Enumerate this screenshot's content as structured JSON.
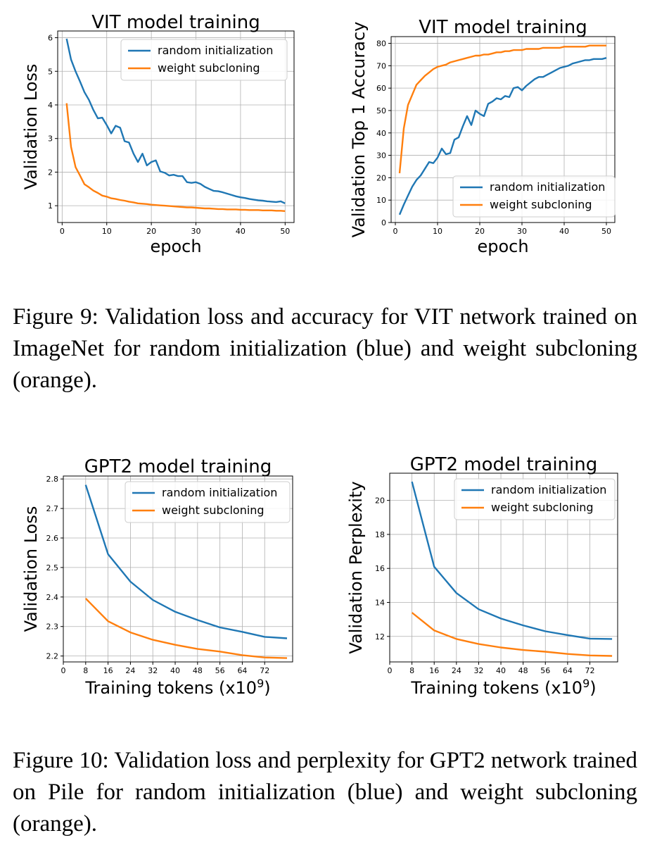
{
  "charts": [
    {
      "id": "vit-loss",
      "chart_data": {
        "type": "line",
        "title": "VIT model training",
        "xlabel": "epoch",
        "ylabel": "Validation Loss",
        "xlim": [
          -1,
          52
        ],
        "ylim": [
          0.5,
          6.2
        ],
        "xticks": [
          0,
          10,
          20,
          30,
          40,
          50
        ],
        "yticks": [
          1,
          2,
          3,
          4,
          5,
          6
        ],
        "grid": true,
        "legend": "upper-right",
        "series": [
          {
            "name": "random initialization",
            "color": "#1f77b4",
            "x": [
              1,
              2,
              3,
              4,
              5,
              6,
              7,
              8,
              9,
              10,
              11,
              12,
              13,
              14,
              15,
              16,
              17,
              18,
              19,
              20,
              21,
              22,
              23,
              24,
              25,
              26,
              27,
              28,
              29,
              30,
              31,
              32,
              33,
              34,
              35,
              36,
              37,
              38,
              39,
              40,
              41,
              42,
              43,
              44,
              45,
              46,
              47,
              48,
              49,
              50
            ],
            "y": [
              5.97,
              5.35,
              5.0,
              4.7,
              4.38,
              4.15,
              3.85,
              3.6,
              3.62,
              3.4,
              3.15,
              3.38,
              3.32,
              2.92,
              2.88,
              2.55,
              2.3,
              2.55,
              2.2,
              2.3,
              2.35,
              2.02,
              1.98,
              1.9,
              1.92,
              1.88,
              1.88,
              1.7,
              1.68,
              1.7,
              1.65,
              1.56,
              1.5,
              1.44,
              1.43,
              1.4,
              1.36,
              1.32,
              1.28,
              1.25,
              1.23,
              1.2,
              1.18,
              1.16,
              1.15,
              1.13,
              1.12,
              1.11,
              1.13,
              1.07
            ]
          },
          {
            "name": "weight subcloning",
            "color": "#ff7f0e",
            "x": [
              1,
              2,
              3,
              4,
              5,
              6,
              7,
              8,
              9,
              10,
              11,
              12,
              13,
              14,
              15,
              16,
              17,
              18,
              19,
              20,
              21,
              22,
              23,
              24,
              25,
              26,
              27,
              28,
              29,
              30,
              31,
              32,
              33,
              34,
              35,
              36,
              37,
              38,
              39,
              40,
              41,
              42,
              43,
              44,
              45,
              46,
              47,
              48,
              49,
              50
            ],
            "y": [
              4.05,
              2.75,
              2.15,
              1.9,
              1.64,
              1.55,
              1.45,
              1.38,
              1.3,
              1.27,
              1.22,
              1.2,
              1.17,
              1.15,
              1.12,
              1.1,
              1.07,
              1.06,
              1.05,
              1.03,
              1.02,
              1.01,
              1.0,
              0.99,
              0.98,
              0.97,
              0.96,
              0.95,
              0.95,
              0.94,
              0.93,
              0.92,
              0.92,
              0.91,
              0.9,
              0.9,
              0.89,
              0.89,
              0.89,
              0.88,
              0.88,
              0.87,
              0.87,
              0.87,
              0.86,
              0.86,
              0.86,
              0.85,
              0.85,
              0.84
            ]
          }
        ]
      }
    },
    {
      "id": "vit-acc",
      "chart_data": {
        "type": "line",
        "title": "VIT model training",
        "xlabel": "epoch",
        "ylabel": "Validation Top 1 Accuracy",
        "xlim": [
          -1,
          52
        ],
        "ylim": [
          0,
          83
        ],
        "xticks": [
          0,
          10,
          20,
          30,
          40,
          50
        ],
        "yticks": [
          0,
          10,
          20,
          30,
          40,
          50,
          60,
          70,
          80
        ],
        "grid": true,
        "legend": "lower-right",
        "series": [
          {
            "name": "random initialization",
            "color": "#1f77b4",
            "x": [
              1,
              2,
              3,
              4,
              5,
              6,
              7,
              8,
              9,
              10,
              11,
              12,
              13,
              14,
              15,
              16,
              17,
              18,
              19,
              20,
              21,
              22,
              23,
              24,
              25,
              26,
              27,
              28,
              29,
              30,
              31,
              32,
              33,
              34,
              35,
              36,
              37,
              38,
              39,
              40,
              41,
              42,
              43,
              44,
              45,
              46,
              47,
              48,
              49,
              50
            ],
            "y": [
              3.5,
              8,
              12,
              16,
              19,
              21,
              24,
              27,
              26.5,
              29,
              33,
              30.5,
              31,
              37,
              38,
              43,
              47.5,
              43.5,
              50,
              48.5,
              47.5,
              53,
              54,
              55.5,
              55,
              56.5,
              56,
              60,
              60.5,
              59,
              61,
              62.5,
              64,
              65,
              65,
              66,
              67,
              68,
              69,
              69.5,
              70,
              71,
              71.5,
              72,
              72.5,
              72.5,
              73,
              73,
              73,
              73.5
            ]
          },
          {
            "name": "weight subcloning",
            "color": "#ff7f0e",
            "x": [
              1,
              2,
              3,
              4,
              5,
              6,
              7,
              8,
              9,
              10,
              11,
              12,
              13,
              14,
              15,
              16,
              17,
              18,
              19,
              20,
              21,
              22,
              23,
              24,
              25,
              26,
              27,
              28,
              29,
              30,
              31,
              32,
              33,
              34,
              35,
              36,
              37,
              38,
              39,
              40,
              41,
              42,
              43,
              44,
              45,
              46,
              47,
              48,
              49,
              50
            ],
            "y": [
              22,
              42,
              52.5,
              57,
              61.5,
              63.5,
              65.5,
              67,
              68.5,
              69.5,
              70,
              70.5,
              71.5,
              72,
              72.5,
              73,
              73.5,
              74,
              74.5,
              74.5,
              75,
              75,
              75.5,
              76,
              76,
              76.5,
              76.5,
              77,
              77,
              77,
              77.5,
              77.5,
              77.5,
              77.5,
              78,
              78,
              78,
              78,
              78,
              78.5,
              78.5,
              78.5,
              78.5,
              78.5,
              78.5,
              79,
              79,
              79,
              79,
              79
            ]
          }
        ]
      }
    },
    {
      "id": "gpt2-loss",
      "chart_data": {
        "type": "line",
        "title": "GPT2 model training",
        "xlabel": "Training tokens (x10",
        "xlabel_sup": "9",
        "xlabel_end": ")",
        "ylabel": "Validation Loss",
        "xlim": [
          0,
          82
        ],
        "ylim": [
          2.18,
          2.81
        ],
        "xticks": [
          0,
          8,
          16,
          24,
          32,
          40,
          48,
          56,
          64,
          72
        ],
        "yticks": [
          2.2,
          2.3,
          2.4,
          2.5,
          2.6,
          2.7,
          2.8
        ],
        "grid": true,
        "legend": "upper-right",
        "series": [
          {
            "name": "random initialization",
            "color": "#1f77b4",
            "x": [
              8,
              16,
              24,
              32,
              40,
              48,
              56,
              64,
              72,
              80
            ],
            "y": [
              2.78,
              2.545,
              2.452,
              2.39,
              2.35,
              2.322,
              2.297,
              2.282,
              2.265,
              2.26
            ]
          },
          {
            "name": "weight subcloning",
            "color": "#ff7f0e",
            "x": [
              8,
              16,
              24,
              32,
              40,
              48,
              56,
              64,
              72,
              80
            ],
            "y": [
              2.395,
              2.318,
              2.28,
              2.255,
              2.238,
              2.224,
              2.215,
              2.203,
              2.195,
              2.193
            ]
          }
        ]
      }
    },
    {
      "id": "gpt2-ppl",
      "chart_data": {
        "type": "line",
        "title": "GPT2 model training",
        "xlabel": "Training tokens (x10",
        "xlabel_sup": "9",
        "xlabel_end": ")",
        "ylabel": "Validation Perplexity",
        "xlim": [
          0,
          82
        ],
        "ylim": [
          10.5,
          21.6
        ],
        "xticks": [
          0,
          8,
          16,
          24,
          32,
          40,
          48,
          56,
          64,
          72
        ],
        "yticks": [
          12,
          14,
          16,
          18,
          20
        ],
        "grid": true,
        "legend": "upper-right",
        "series": [
          {
            "name": "random initialization",
            "color": "#1f77b4",
            "x": [
              8,
              16,
              24,
              32,
              40,
              48,
              56,
              64,
              72,
              80
            ],
            "y": [
              21.1,
              16.1,
              14.55,
              13.6,
              13.05,
              12.65,
              12.3,
              12.08,
              11.87,
              11.85
            ]
          },
          {
            "name": "weight subcloning",
            "color": "#ff7f0e",
            "x": [
              8,
              16,
              24,
              32,
              40,
              48,
              56,
              64,
              72,
              80
            ],
            "y": [
              13.4,
              12.35,
              11.85,
              11.55,
              11.35,
              11.2,
              11.1,
              10.97,
              10.88,
              10.85
            ]
          }
        ]
      }
    }
  ],
  "captions": {
    "fig9": "Figure 9: Validation loss and accuracy for VIT network trained on ImageNet for random initialization (blue) and weight subcloning (orange).",
    "fig10": "Figure 10: Validation loss and perplexity for GPT2 network trained on Pile for random initialization (blue) and weight subcloning (orange)."
  }
}
